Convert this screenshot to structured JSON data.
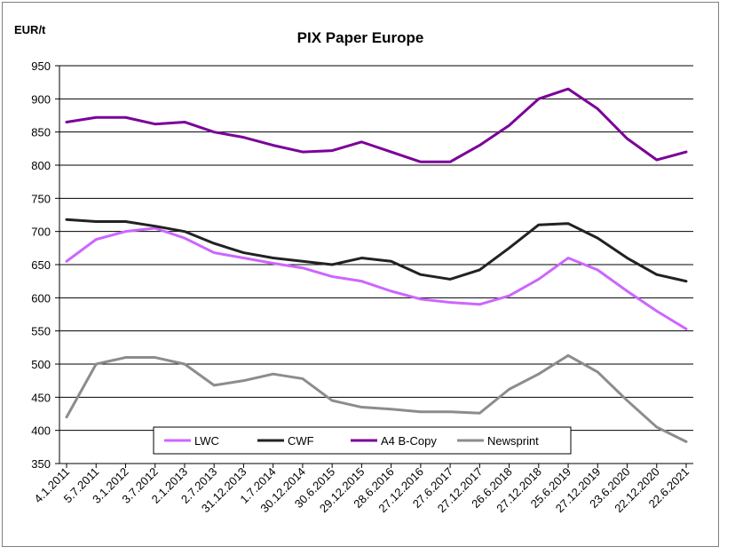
{
  "chart_data": {
    "type": "line",
    "title": "PIX Paper Europe",
    "ylabel": "EUR/t",
    "xlabel": "",
    "ylim": [
      350,
      950
    ],
    "yticks": [
      350,
      400,
      450,
      500,
      550,
      600,
      650,
      700,
      750,
      800,
      850,
      900,
      950
    ],
    "grid": "horizontal",
    "legend_position": "bottom-center",
    "x_tick_labels": [
      "4.1.2011",
      "5.7.2011",
      "3.1.2012",
      "3.7.2012",
      "2.1.2013",
      "2.7.2013",
      "31.12.2013",
      "1.7.2014",
      "30.12.2014",
      "30.6.2015",
      "29.12.2015",
      "28.6.2016",
      "27.12.2016",
      "27.6.2017",
      "27.12.2017",
      "26.6.2018",
      "27.12.2018",
      "25.6.2019",
      "27.12.2019",
      "23.6.2020",
      "22.12.2020",
      "22.6.2021"
    ],
    "x": [
      "4.1.2011",
      "5.7.2011",
      "3.1.2012",
      "3.7.2012",
      "2.1.2013",
      "2.7.2013",
      "31.12.2013",
      "1.7.2014",
      "30.12.2014",
      "30.6.2015",
      "29.12.2015",
      "28.6.2016",
      "27.12.2016",
      "27.6.2017",
      "27.12.2017",
      "26.6.2018",
      "27.12.2018",
      "25.6.2019",
      "27.12.2019",
      "23.6.2020",
      "22.12.2020",
      "22.6.2021"
    ],
    "series": [
      {
        "name": "LWC",
        "color": "#cc66ff",
        "values": [
          655,
          688,
          700,
          705,
          690,
          668,
          660,
          652,
          645,
          632,
          625,
          610,
          598,
          593,
          590,
          603,
          628,
          660,
          642,
          610,
          580,
          553
        ]
      },
      {
        "name": "CWF",
        "color": "#222222",
        "values": [
          718,
          715,
          715,
          708,
          700,
          682,
          668,
          660,
          655,
          650,
          660,
          655,
          635,
          628,
          642,
          675,
          710,
          712,
          690,
          660,
          635,
          625
        ]
      },
      {
        "name": "A4 B-Copy",
        "color": "#7b0099",
        "values": [
          865,
          872,
          872,
          862,
          865,
          850,
          842,
          830,
          820,
          822,
          835,
          820,
          805,
          805,
          830,
          860,
          900,
          915,
          885,
          840,
          808,
          820
        ]
      },
      {
        "name": "Newsprint",
        "color": "#8c8c8c",
        "values": [
          420,
          500,
          510,
          510,
          500,
          468,
          475,
          485,
          478,
          445,
          435,
          432,
          428,
          428,
          426,
          462,
          485,
          513,
          488,
          445,
          405,
          383
        ]
      }
    ]
  }
}
